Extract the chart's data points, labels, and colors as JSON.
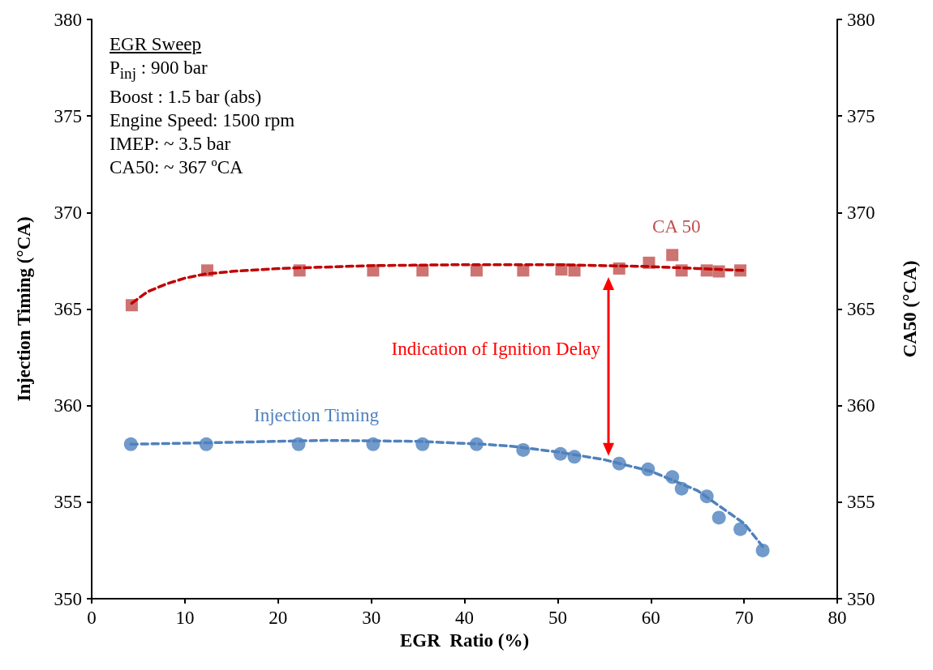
{
  "chart_data": {
    "type": "scatter",
    "title": "EGR Sweep",
    "xlabel": "EGR  Ratio (%)",
    "ylabel": "Injection Timing (°CA)",
    "y2label": "CA50 (°CA)",
    "xlim": [
      0,
      80
    ],
    "xticks": [
      0,
      10,
      20,
      30,
      40,
      50,
      60,
      70,
      80
    ],
    "ylim": [
      350,
      380
    ],
    "yticks": [
      350,
      355,
      360,
      365,
      370,
      375,
      380
    ],
    "y2lim": [
      350,
      380
    ],
    "y2ticks": [
      350,
      355,
      360,
      365,
      370,
      375,
      380
    ],
    "grid": false,
    "annotations": [
      "P$_{inj}$ : 900 bar",
      "Boost : 1.5 bar (abs)",
      "Engine Speed: 1500 rpm",
      "IMEP: ~ 3.5 bar",
      "CA50: ~ 367 ºCA",
      "Indication of Ignition Delay"
    ],
    "series": [
      {
        "name": "CA 50",
        "axis": "y2",
        "marker": "square",
        "color": "#c0504d",
        "x": [
          4.3,
          12.4,
          22.3,
          30.2,
          35.5,
          41.3,
          46.3,
          50.4,
          51.8,
          56.6,
          59.8,
          62.3,
          63.3,
          66.0,
          67.3,
          69.6
        ],
        "values": [
          365.2,
          367.0,
          367.0,
          367.0,
          367.0,
          367.0,
          367.0,
          367.05,
          367.0,
          367.1,
          367.4,
          367.8,
          367.0,
          367.0,
          366.95,
          367.0
        ]
      },
      {
        "name": "Injection Timing",
        "marker": "circle",
        "color": "#4f81bd",
        "x": [
          4.2,
          12.3,
          22.2,
          30.2,
          35.5,
          41.3,
          46.3,
          50.3,
          51.8,
          56.6,
          59.7,
          62.3,
          63.3,
          66.0,
          67.3,
          69.6,
          72.0
        ],
        "values": [
          358.0,
          358.0,
          358.0,
          358.0,
          358.0,
          358.0,
          357.7,
          357.5,
          357.35,
          357.0,
          356.7,
          356.3,
          355.7,
          355.3,
          354.2,
          353.6,
          352.5
        ]
      },
      {
        "type": "line",
        "axis": "y2",
        "marker": "none",
        "line_style": "dashed",
        "color": "#c00000",
        "x": [
          4.3,
          6,
          8,
          10,
          12,
          15,
          20,
          30,
          40,
          50,
          60,
          65,
          70
        ],
        "values": [
          365.3,
          365.9,
          366.3,
          366.6,
          366.8,
          366.95,
          367.1,
          367.25,
          367.3,
          367.3,
          367.2,
          367.1,
          367.0
        ]
      },
      {
        "type": "line",
        "marker": "none",
        "line_style": "dashed",
        "color": "#4f81bd",
        "x": [
          4.2,
          15,
          25,
          35,
          42,
          45,
          50,
          55,
          60,
          65,
          70,
          72
        ],
        "values": [
          358.0,
          358.1,
          358.2,
          358.15,
          358.0,
          357.9,
          357.6,
          357.2,
          356.6,
          355.6,
          353.9,
          352.7
        ]
      }
    ]
  }
}
